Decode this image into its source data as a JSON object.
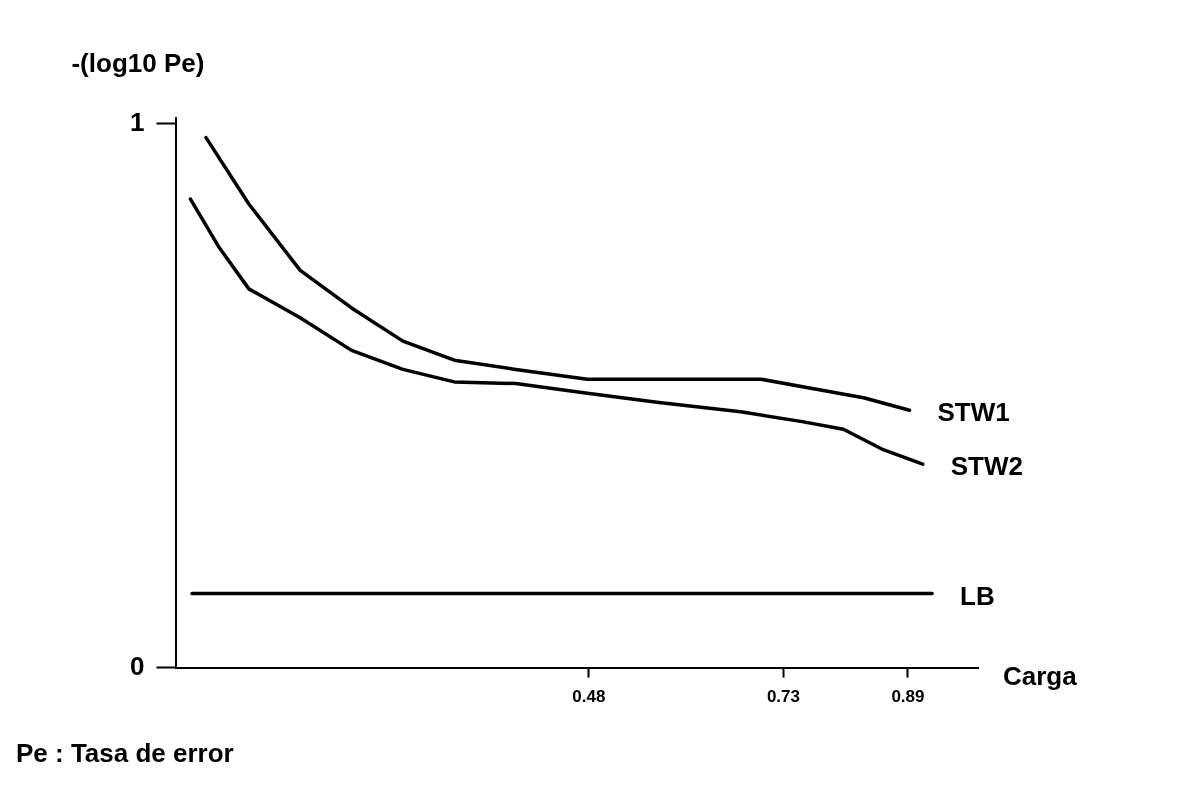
{
  "chart_data": {
    "type": "line",
    "ylabel": "-(log10 Pe)",
    "xlabel": "Carga",
    "annotations": [
      "Pe : Tasa de error"
    ],
    "xlim": [
      -0.05,
      0.98
    ],
    "xticks": [
      0.48,
      0.73,
      0.89
    ],
    "ylim": [
      0,
      1.01
    ],
    "yticks": [
      0,
      1
    ],
    "grid": false,
    "legend": false,
    "marker": "none",
    "line_style": "solid",
    "series": [
      {
        "name": "STW1",
        "color": "#000000",
        "x": [
          -0.012,
          0.043,
          0.109,
          0.175,
          0.241,
          0.307,
          0.386,
          0.478,
          0.57,
          0.701,
          0.767,
          0.833,
          0.892
        ],
        "values": [
          0.974,
          0.852,
          0.73,
          0.661,
          0.6,
          0.565,
          0.548,
          0.53,
          0.53,
          0.53,
          0.513,
          0.496,
          0.473
        ]
      },
      {
        "name": "STW2",
        "color": "#000000",
        "x": [
          -0.032,
          0.004,
          0.043,
          0.109,
          0.175,
          0.241,
          0.307,
          0.386,
          0.478,
          0.57,
          0.675,
          0.754,
          0.807,
          0.859,
          0.909
        ],
        "values": [
          0.861,
          0.774,
          0.696,
          0.643,
          0.583,
          0.548,
          0.525,
          0.522,
          0.504,
          0.487,
          0.47,
          0.452,
          0.438,
          0.4,
          0.374
        ]
      },
      {
        "name": "LB",
        "color": "#000000",
        "x": [
          -0.03,
          0.921
        ],
        "values": [
          0.136,
          0.136
        ]
      }
    ]
  }
}
